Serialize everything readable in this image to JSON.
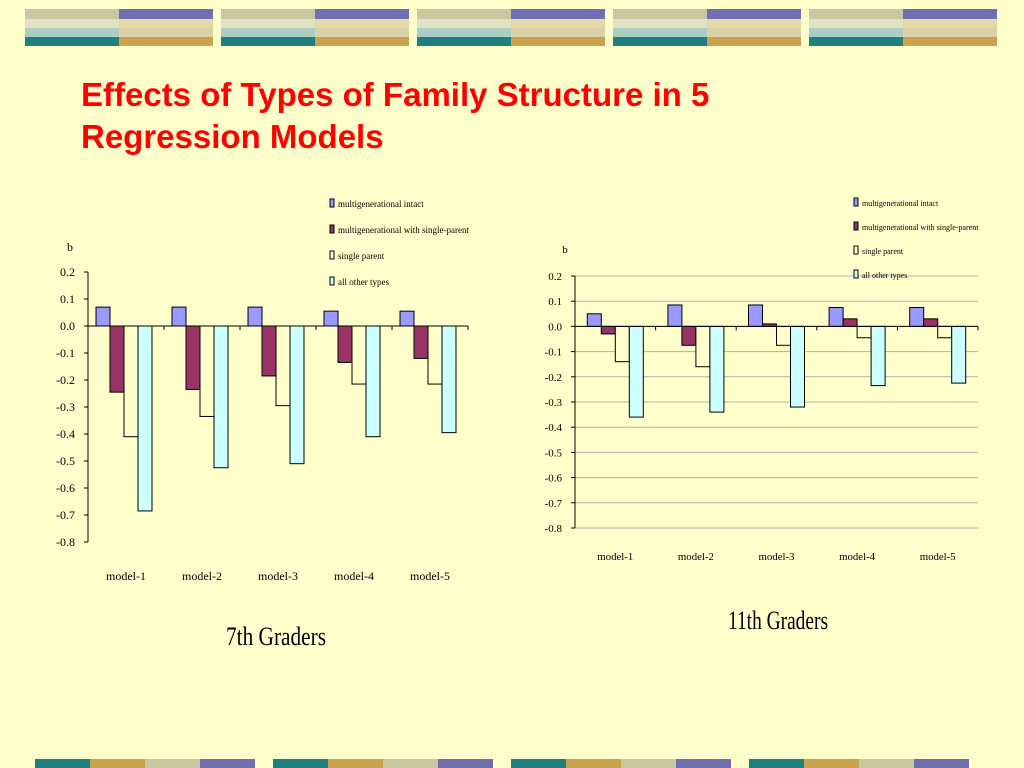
{
  "slide": {
    "title_line1": "Effects of Types of Family Structure in 5",
    "title_line2": "Regression Models"
  },
  "colors": {
    "background": "#ffffcc",
    "title": "#ff0000",
    "multigenerational_intact": "#9999ff",
    "multigenerational_single_parent": "#993366",
    "single_parent": "#ffffcc",
    "all_other_types": "#ccffff",
    "decor_teal": "#1f7f7f",
    "decor_gold": "#c8a24e",
    "decor_purple": "#6f6fad",
    "decor_olive": "#c7c7a0"
  },
  "chart_data": [
    {
      "type": "bar",
      "title": "7th Graders",
      "ylabel": "b",
      "ylim": [
        -0.8,
        0.2
      ],
      "yticks": [
        "0.2",
        "0.1",
        "0.0",
        "-0.1",
        "-0.2",
        "-0.3",
        "-0.4",
        "-0.5",
        "-0.6",
        "-0.7",
        "-0.8"
      ],
      "grid": false,
      "legend_position": "top-right",
      "categories": [
        "model-1",
        "model-2",
        "model-3",
        "model-4",
        "model-5"
      ],
      "series": [
        {
          "name": "multigenerational intact",
          "color": "#9999ff",
          "values": [
            0.07,
            0.07,
            0.07,
            0.055,
            0.055
          ]
        },
        {
          "name": "multigenerational with single-parent",
          "color": "#993366",
          "values": [
            -0.245,
            -0.235,
            -0.185,
            -0.135,
            -0.12
          ]
        },
        {
          "name": "single parent",
          "color": "#ffffcc",
          "values": [
            -0.41,
            -0.335,
            -0.295,
            -0.215,
            -0.215
          ]
        },
        {
          "name": "all other types",
          "color": "#ccffff",
          "values": [
            -0.685,
            -0.525,
            -0.51,
            -0.41,
            -0.395
          ]
        }
      ]
    },
    {
      "type": "bar",
      "title": "11th Graders",
      "ylabel": "b",
      "ylim": [
        -0.8,
        0.2
      ],
      "yticks": [
        "0.2",
        "0.1",
        "0.0",
        "-0.1",
        "-0.2",
        "-0.3",
        "-0.4",
        "-0.5",
        "-0.6",
        "-0.7",
        "-0.8"
      ],
      "grid": true,
      "legend_position": "top-right",
      "categories": [
        "model-1",
        "model-2",
        "model-3",
        "model-4",
        "model-5"
      ],
      "series": [
        {
          "name": "multigenerational intact",
          "color": "#9999ff",
          "values": [
            0.05,
            0.085,
            0.085,
            0.075,
            0.075
          ]
        },
        {
          "name": "multigenerational with single-parent",
          "color": "#993366",
          "values": [
            -0.03,
            -0.075,
            0.01,
            0.03,
            0.03
          ]
        },
        {
          "name": "single parent",
          "color": "#ffffcc",
          "values": [
            -0.14,
            -0.16,
            -0.075,
            -0.045,
            -0.045
          ]
        },
        {
          "name": "all other types",
          "color": "#ccffff",
          "values": [
            -0.36,
            -0.34,
            -0.32,
            -0.235,
            -0.225
          ]
        }
      ]
    }
  ]
}
